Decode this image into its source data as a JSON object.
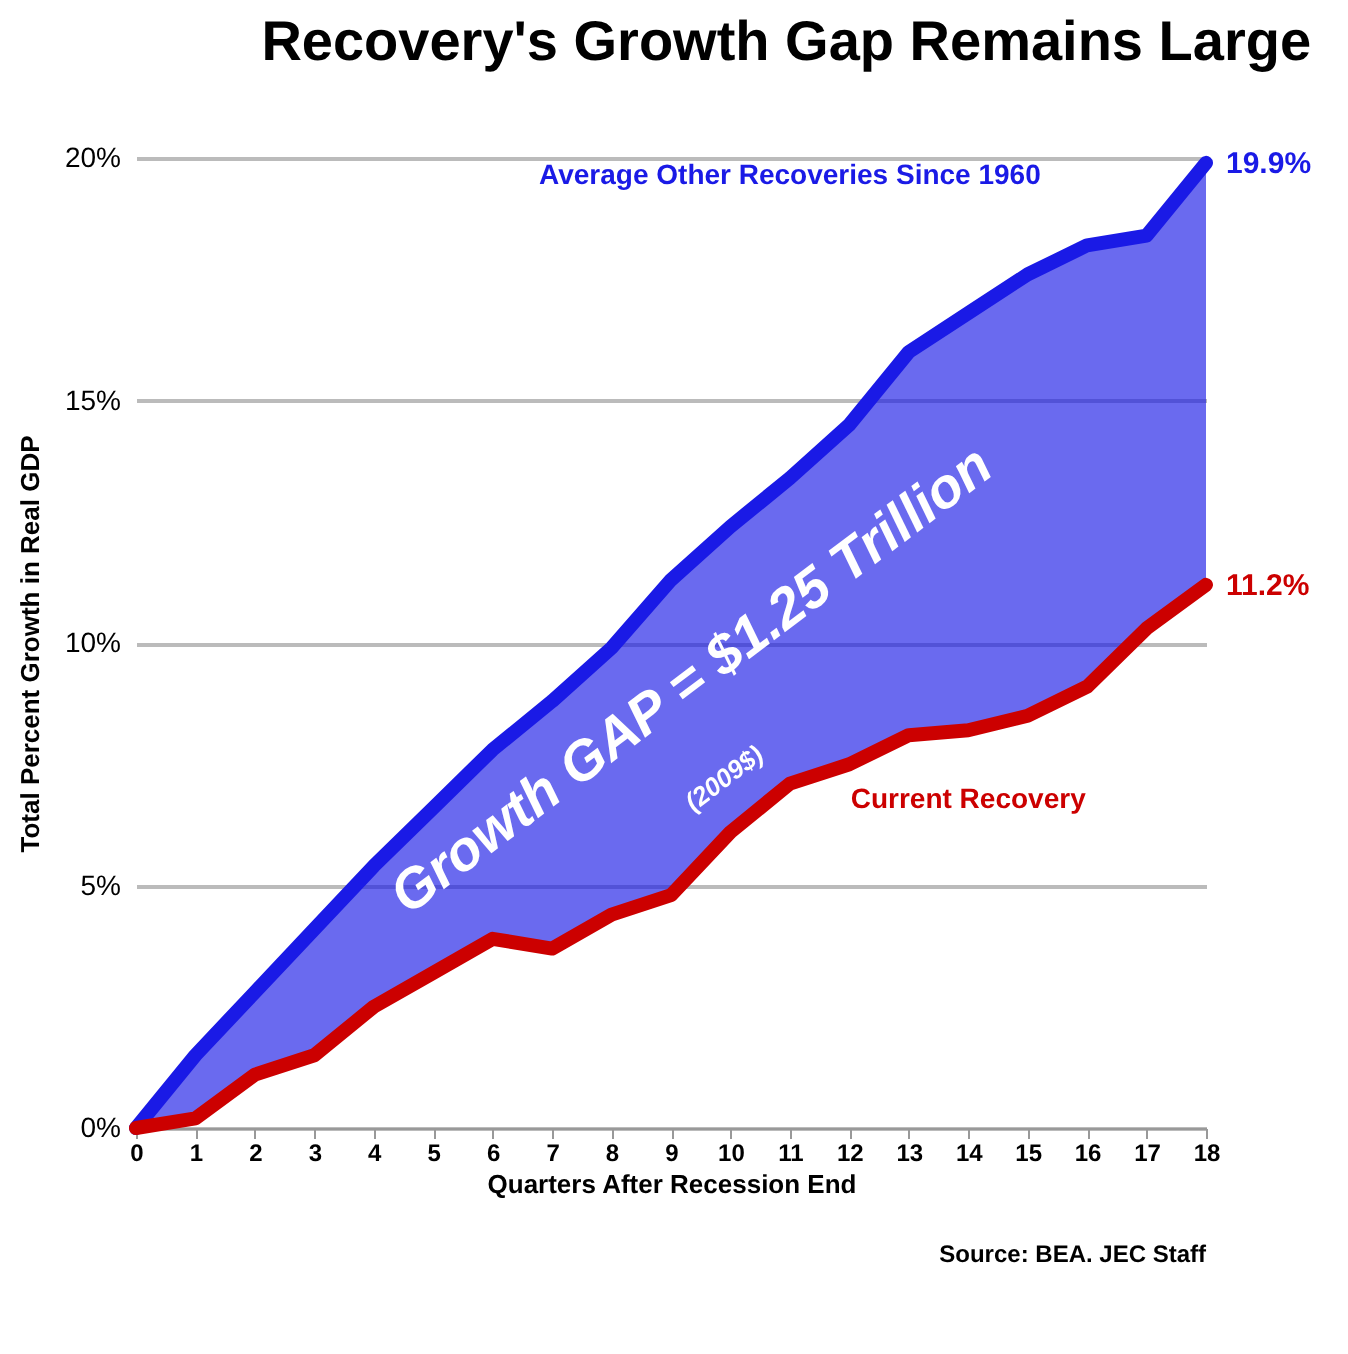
{
  "chart_data": {
    "type": "line",
    "title": "Recovery's Growth Gap Remains Large",
    "xlabel": "Quarters After Recession End",
    "ylabel": "Total Percent Growth in Real GDP",
    "x": [
      0,
      1,
      2,
      3,
      4,
      5,
      6,
      7,
      8,
      9,
      10,
      11,
      12,
      13,
      14,
      15,
      16,
      17,
      18
    ],
    "series": [
      {
        "name": "Average Other Recoveries Since 1960",
        "color": "#1a1ae6",
        "values": [
          0,
          1.5,
          2.8,
          4.1,
          5.4,
          6.6,
          7.8,
          8.8,
          9.9,
          11.3,
          12.4,
          13.4,
          14.5,
          16.0,
          16.8,
          17.6,
          18.2,
          18.4,
          19.9
        ],
        "lower": [
          0,
          0.2,
          1.1,
          1.5,
          2.5,
          3.2,
          3.9,
          3.7,
          4.4,
          4.8,
          6.1,
          7.1,
          7.5,
          8.1,
          8.2,
          8.5,
          9.1,
          10.3,
          11.2
        ],
        "upper": [
          0,
          1.5,
          2.8,
          4.1,
          5.4,
          6.6,
          7.8,
          8.8,
          9.9,
          11.3,
          12.4,
          13.4,
          14.5,
          16.0,
          16.8,
          17.6,
          18.2,
          18.4,
          19.9
        ],
        "value_labels": [
          null,
          null,
          null,
          null,
          null,
          null,
          null,
          null,
          null,
          null,
          null,
          null,
          null,
          null,
          null,
          null,
          null,
          null,
          "19.9%"
        ]
      },
      {
        "name": "Current Recovery",
        "color": "#cc0000",
        "values": [
          0,
          0.2,
          1.1,
          1.5,
          2.5,
          3.2,
          3.9,
          3.7,
          4.4,
          4.8,
          6.1,
          7.1,
          7.5,
          8.1,
          8.2,
          8.5,
          9.1,
          10.3,
          11.2
        ],
        "value_labels": [
          null,
          null,
          null,
          null,
          null,
          null,
          null,
          null,
          null,
          null,
          null,
          null,
          null,
          null,
          null,
          null,
          null,
          null,
          "11.2%"
        ]
      }
    ],
    "xlim": [
      0,
      18
    ],
    "xticks": [
      0,
      1,
      2,
      3,
      4,
      5,
      6,
      7,
      8,
      9,
      10,
      11,
      12,
      13,
      14,
      15,
      16,
      17,
      18
    ],
    "ylim": [
      0,
      20
    ],
    "yticks": [
      {
        "value": 0,
        "label": "0%"
      },
      {
        "value": 5,
        "label": "5%"
      },
      {
        "value": 10,
        "label": "10%"
      },
      {
        "value": 15,
        "label": "15%"
      },
      {
        "value": 20,
        "label": "20%"
      }
    ],
    "grid": "y",
    "legend": false,
    "line_style": "solid",
    "annotations": [
      "Growth GAP = $1.25 Trillion",
      "(2009$)",
      "Source: BEA. JEC Staff"
    ]
  }
}
